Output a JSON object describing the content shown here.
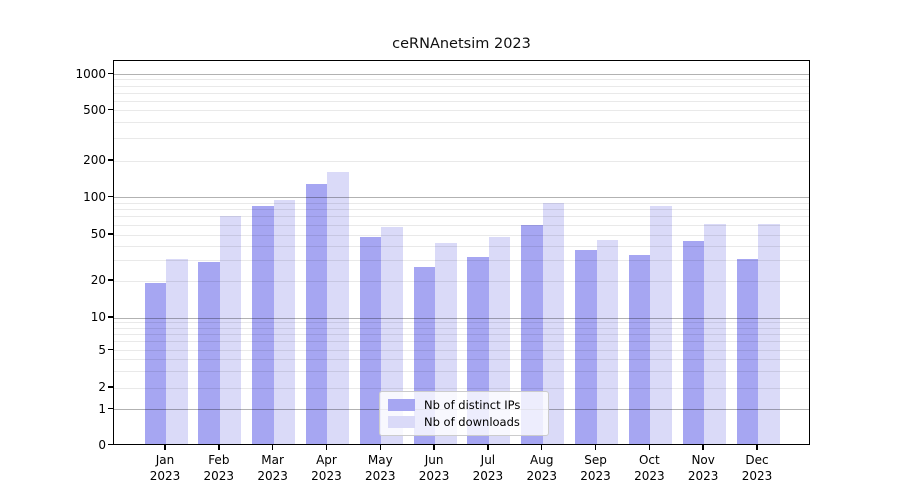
{
  "chart_data": {
    "type": "bar",
    "title": "ceRNAnetsim 2023",
    "categories": [
      "Jan 2023",
      "Feb 2023",
      "Mar 2023",
      "Apr 2023",
      "May 2023",
      "Jun 2023",
      "Jul 2023",
      "Aug 2023",
      "Sep 2023",
      "Oct 2023",
      "Nov 2023",
      "Dec 2023"
    ],
    "series": [
      {
        "name": "Nb of distinct IPs",
        "color": "#a6a6f2",
        "values": [
          19,
          29,
          85,
          127,
          48,
          26,
          32,
          60,
          37,
          33,
          44,
          31
        ]
      },
      {
        "name": "Nb of downloads",
        "color": "#dadaf8",
        "values": [
          31,
          70,
          95,
          162,
          57,
          42,
          48,
          90,
          45,
          84,
          61,
          61
        ]
      }
    ],
    "ytick_labels": [
      "0",
      "1",
      "2",
      "5",
      "10",
      "20",
      "50",
      "100",
      "200",
      "500",
      "1000"
    ],
    "yscale": "log-like (linear below 1)",
    "ylim": [
      0,
      1200
    ],
    "xlabel": "",
    "ylabel": "",
    "grid": true,
    "legend_position": "lower center"
  }
}
